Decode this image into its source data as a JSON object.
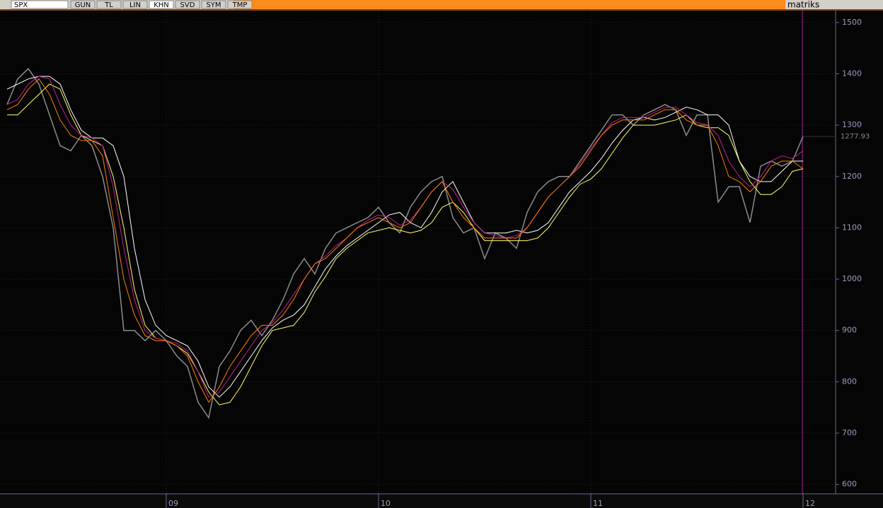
{
  "toolbar": {
    "symbol": "SPX",
    "buttons": [
      "GUN",
      "TL",
      "LIN",
      "KHN",
      "SVD",
      "SYM",
      "TMP"
    ],
    "brand": "matriks"
  },
  "chart_data": {
    "type": "line",
    "x": [
      2008.25,
      2008.3,
      2008.35,
      2008.4,
      2008.45,
      2008.5,
      2008.55,
      2008.6,
      2008.65,
      2008.7,
      2008.75,
      2008.8,
      2008.85,
      2008.9,
      2008.95,
      2009.0,
      2009.05,
      2009.1,
      2009.15,
      2009.2,
      2009.25,
      2009.3,
      2009.35,
      2009.4,
      2009.45,
      2009.5,
      2009.55,
      2009.6,
      2009.65,
      2009.7,
      2009.75,
      2009.8,
      2009.85,
      2009.9,
      2009.95,
      2010.0,
      2010.05,
      2010.1,
      2010.15,
      2010.2,
      2010.25,
      2010.3,
      2010.35,
      2010.4,
      2010.45,
      2010.5,
      2010.55,
      2010.6,
      2010.65,
      2010.7,
      2010.75,
      2010.8,
      2010.85,
      2010.9,
      2010.95,
      2011.0,
      2011.05,
      2011.1,
      2011.15,
      2011.2,
      2011.25,
      2011.3,
      2011.35,
      2011.4,
      2011.45,
      2011.5,
      2011.55,
      2011.6,
      2011.65,
      2011.7,
      2011.75,
      2011.8,
      2011.85,
      2011.9,
      2011.95,
      2012.0
    ],
    "series": [
      {
        "color": "#8c8c8c",
        "values": [
          1340,
          1390,
          1410,
          1380,
          1320,
          1260,
          1250,
          1280,
          1260,
          1200,
          1100,
          900,
          900,
          880,
          900,
          880,
          850,
          830,
          760,
          730,
          830,
          860,
          900,
          920,
          890,
          920,
          960,
          1010,
          1040,
          1010,
          1060,
          1090,
          1100,
          1110,
          1120,
          1140,
          1110,
          1090,
          1140,
          1170,
          1190,
          1200,
          1120,
          1090,
          1100,
          1040,
          1090,
          1080,
          1060,
          1130,
          1170,
          1190,
          1200,
          1200,
          1230,
          1260,
          1290,
          1320,
          1320,
          1300,
          1320,
          1330,
          1340,
          1330,
          1280,
          1320,
          1320,
          1150,
          1180,
          1180,
          1110,
          1220,
          1230,
          1220,
          1230,
          1278
        ]
      },
      {
        "color": "#ffffff",
        "values": [
          1370,
          1380,
          1390,
          1395,
          1395,
          1380,
          1330,
          1290,
          1275,
          1275,
          1260,
          1200,
          1060,
          960,
          910,
          890,
          880,
          870,
          840,
          790,
          770,
          790,
          820,
          850,
          880,
          905,
          920,
          930,
          950,
          985,
          1020,
          1045,
          1065,
          1080,
          1095,
          1110,
          1125,
          1130,
          1110,
          1100,
          1130,
          1170,
          1190,
          1150,
          1110,
          1090,
          1090,
          1090,
          1095,
          1090,
          1095,
          1110,
          1140,
          1170,
          1190,
          1210,
          1235,
          1265,
          1290,
          1310,
          1315,
          1310,
          1315,
          1325,
          1335,
          1330,
          1320,
          1320,
          1300,
          1230,
          1200,
          1190,
          1190,
          1210,
          1230,
          1230
        ]
      },
      {
        "color": "#ffff66",
        "values": [
          1320,
          1320,
          1340,
          1360,
          1380,
          1370,
          1320,
          1280,
          1270,
          1260,
          1200,
          1100,
          980,
          910,
          885,
          880,
          870,
          855,
          820,
          780,
          755,
          760,
          790,
          830,
          870,
          900,
          905,
          910,
          935,
          975,
          1005,
          1040,
          1060,
          1075,
          1090,
          1095,
          1100,
          1095,
          1090,
          1095,
          1110,
          1140,
          1150,
          1130,
          1100,
          1075,
          1075,
          1075,
          1075,
          1075,
          1080,
          1100,
          1130,
          1160,
          1185,
          1195,
          1215,
          1245,
          1275,
          1300,
          1300,
          1300,
          1305,
          1310,
          1320,
          1300,
          1295,
          1295,
          1280,
          1230,
          1190,
          1165,
          1165,
          1180,
          1210,
          1215
        ]
      },
      {
        "color": "#c0208f",
        "values": [
          1340,
          1350,
          1380,
          1395,
          1390,
          1340,
          1300,
          1280,
          1275,
          1260,
          1180,
          1060,
          960,
          900,
          885,
          880,
          875,
          860,
          820,
          770,
          780,
          810,
          840,
          870,
          900,
          915,
          940,
          970,
          1000,
          1030,
          1045,
          1065,
          1080,
          1100,
          1115,
          1125,
          1120,
          1105,
          1115,
          1140,
          1170,
          1190,
          1175,
          1140,
          1110,
          1090,
          1085,
          1080,
          1085,
          1100,
          1130,
          1160,
          1180,
          1200,
          1225,
          1255,
          1280,
          1305,
          1315,
          1315,
          1315,
          1325,
          1335,
          1335,
          1320,
          1305,
          1300,
          1280,
          1230,
          1200,
          1180,
          1200,
          1230,
          1240,
          1235,
          1250
        ]
      },
      {
        "color": "#ff7f00",
        "values": [
          1330,
          1340,
          1370,
          1390,
          1360,
          1310,
          1280,
          1270,
          1270,
          1240,
          1120,
          1000,
          930,
          890,
          880,
          880,
          870,
          850,
          800,
          760,
          790,
          830,
          860,
          890,
          910,
          910,
          930,
          960,
          1000,
          1030,
          1040,
          1060,
          1080,
          1100,
          1110,
          1120,
          1110,
          1100,
          1110,
          1140,
          1170,
          1190,
          1150,
          1120,
          1100,
          1080,
          1080,
          1080,
          1080,
          1100,
          1130,
          1160,
          1180,
          1200,
          1220,
          1250,
          1280,
          1300,
          1310,
          1310,
          1310,
          1320,
          1330,
          1330,
          1310,
          1300,
          1300,
          1260,
          1200,
          1190,
          1170,
          1190,
          1220,
          1230,
          1230,
          1215
        ]
      }
    ],
    "last_value": 1277.93,
    "xlim": [
      2008.2167,
      2012.15
    ],
    "xticks": [
      {
        "value": 2009,
        "label": "09"
      },
      {
        "value": 2010,
        "label": "10"
      },
      {
        "value": 2011,
        "label": "11"
      },
      {
        "value": 2012,
        "label": "12"
      }
    ],
    "ylim": [
      583,
      1519
    ],
    "yticks": [
      600,
      700,
      800,
      900,
      1000,
      1100,
      1200,
      1300,
      1400,
      1500
    ],
    "grid": true
  }
}
